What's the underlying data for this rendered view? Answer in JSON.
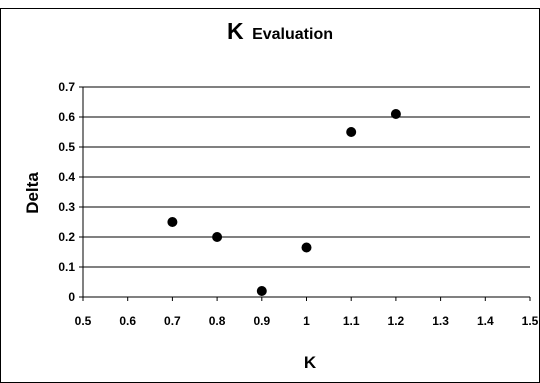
{
  "chart_data": {
    "type": "scatter",
    "title_main": "K",
    "title_sub": "Evaluation",
    "xlabel": "K",
    "ylabel": "Delta",
    "xlim": [
      0.5,
      1.5
    ],
    "ylim": [
      0,
      0.7
    ],
    "x_ticks": [
      "0.5",
      "0.6",
      "0.7",
      "0.8",
      "0.9",
      "1",
      "1.1",
      "1.2",
      "1.3",
      "1.4",
      "1.5"
    ],
    "y_ticks": [
      "0",
      "0.1",
      "0.2",
      "0.3",
      "0.4",
      "0.5",
      "0.6",
      "0.7"
    ],
    "grid": "horizontal",
    "legend": "none",
    "marker_color": "#000000",
    "points": [
      {
        "x": 0.7,
        "y": 0.25
      },
      {
        "x": 0.8,
        "y": 0.2
      },
      {
        "x": 0.9,
        "y": 0.02
      },
      {
        "x": 1.0,
        "y": 0.165
      },
      {
        "x": 1.1,
        "y": 0.55
      },
      {
        "x": 1.2,
        "y": 0.61
      }
    ]
  }
}
